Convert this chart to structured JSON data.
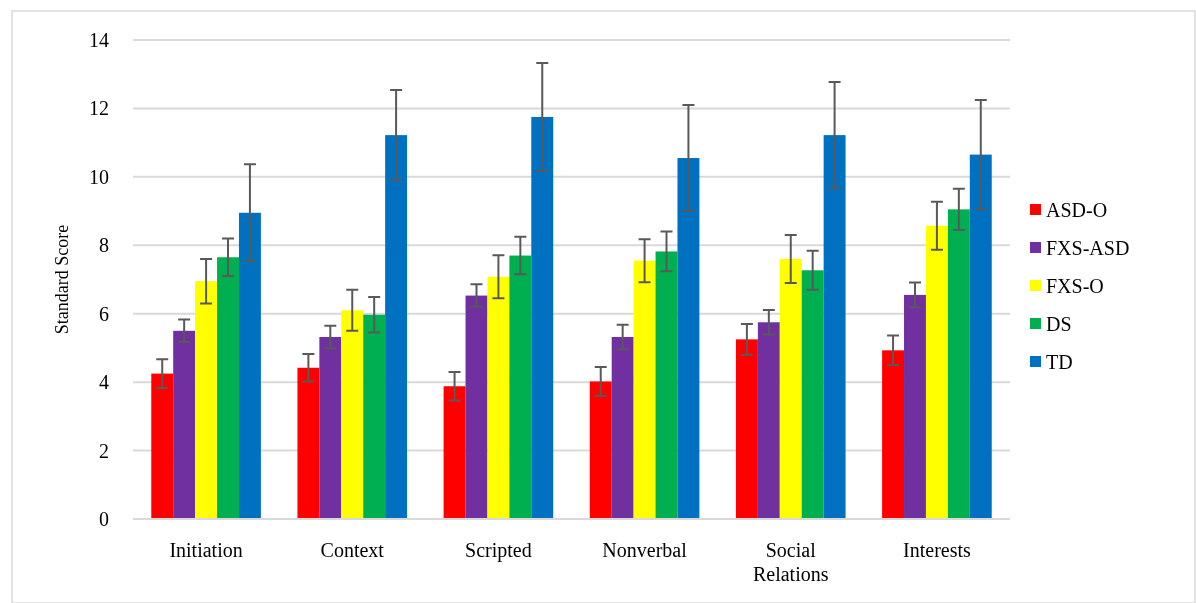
{
  "chart_data": {
    "type": "bar",
    "ylabel": "Standard Score",
    "categories": [
      "Initiation",
      "Context",
      "Scripted",
      "Nonverbal",
      "Social Relations",
      "Interests"
    ],
    "series": [
      {
        "name": "ASD-O",
        "color": "#ff0000",
        "values": [
          4.25,
          4.42,
          3.88,
          4.02,
          5.25,
          4.93
        ],
        "errors": [
          0.42,
          0.4,
          0.42,
          0.42,
          0.45,
          0.43
        ]
      },
      {
        "name": "FXS-ASD",
        "color": "#7030a0",
        "values": [
          5.5,
          5.32,
          6.53,
          5.32,
          5.75,
          6.55
        ],
        "errors": [
          0.33,
          0.33,
          0.33,
          0.36,
          0.36,
          0.36
        ]
      },
      {
        "name": "FXS-O",
        "color": "#ffff00",
        "values": [
          6.95,
          6.1,
          7.08,
          7.55,
          7.6,
          8.57
        ],
        "errors": [
          0.65,
          0.6,
          0.63,
          0.63,
          0.7,
          0.7
        ]
      },
      {
        "name": "DS",
        "color": "#00b050",
        "values": [
          7.65,
          5.97,
          7.7,
          7.82,
          7.27,
          9.05
        ],
        "errors": [
          0.55,
          0.52,
          0.55,
          0.58,
          0.57,
          0.6
        ]
      },
      {
        "name": "TD",
        "color": "#0070c0",
        "values": [
          8.95,
          11.22,
          11.75,
          10.55,
          11.22,
          10.65
        ],
        "errors": [
          1.42,
          1.32,
          1.58,
          1.55,
          1.55,
          1.6
        ]
      }
    ],
    "ylim": [
      0,
      14
    ],
    "yticks": [
      0,
      2,
      4,
      6,
      8,
      10,
      12,
      14
    ],
    "grid": "y",
    "legend": "right"
  }
}
